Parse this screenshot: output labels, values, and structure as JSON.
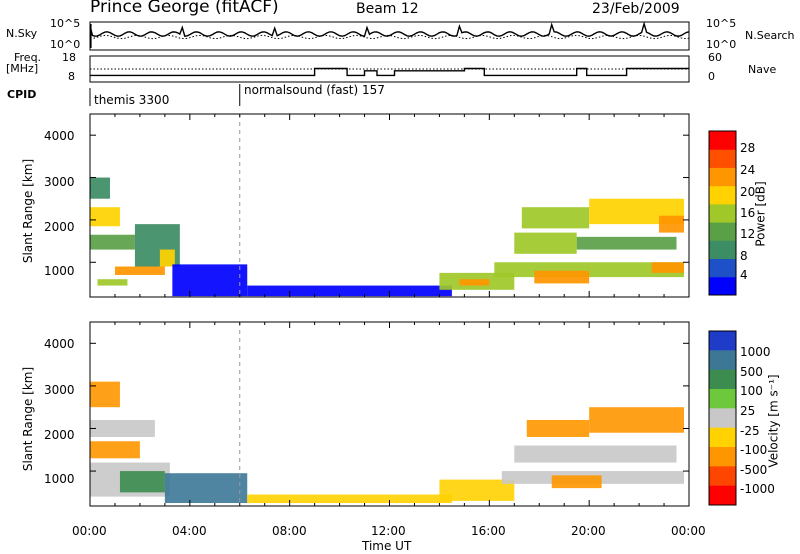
{
  "header": {
    "station": "Prince George (fitACF)",
    "beam": "Beam 12",
    "date": "23/Feb/2009"
  },
  "noise_panel": {
    "left_label": "N.Sky",
    "left_ticks": [
      "10^5",
      "10^0"
    ],
    "right_label": "N.Search",
    "right_ticks": [
      "10^5",
      "10^0"
    ]
  },
  "freq_panel": {
    "left_label_1": "Freq.",
    "left_label_2": "[MHz]",
    "left_ticks": [
      "18",
      "8"
    ],
    "right_label": "Nave",
    "right_ticks": [
      "60",
      "0"
    ]
  },
  "cpid": {
    "label": "CPID",
    "segments": [
      {
        "start_hour": 0,
        "text": "themis 3300"
      },
      {
        "start_hour": 6,
        "text": "normalsound (fast) 157"
      }
    ]
  },
  "power_panel": {
    "ylabel": "Slant Range [km]",
    "yticks": [
      "1000",
      "2000",
      "3000",
      "4000"
    ],
    "colorbar_label": "Power [dB]",
    "colorbar_ticks": [
      "4",
      "8",
      "12",
      "16",
      "20",
      "24",
      "28"
    ],
    "colors": [
      "#0000ff",
      "#1e50c8",
      "#3c8c64",
      "#5aa046",
      "#a0c828",
      "#ffd200",
      "#ff9600",
      "#ff5000",
      "#ff0000"
    ]
  },
  "velocity_panel": {
    "ylabel": "Slant Range [km]",
    "yticks": [
      "1000",
      "2000",
      "3000",
      "4000"
    ],
    "colorbar_label": "Velocity [m s⁻¹]",
    "colorbar_ticks": [
      "1000",
      "500",
      "100",
      "25",
      "-25",
      "-100",
      "-500",
      "-1000"
    ],
    "colors": [
      "#1e3cc8",
      "#3c7896",
      "#3c8c50",
      "#6ec83c",
      "#c8c8c8",
      "#ffd200",
      "#ff9600",
      "#ff4600",
      "#ff0000"
    ]
  },
  "xaxis": {
    "label": "Time UT",
    "ticks": [
      "00:00",
      "04:00",
      "08:00",
      "12:00",
      "16:00",
      "20:00",
      "00:00"
    ]
  },
  "chart_data": {
    "type": "heatmap",
    "title": "Prince George (fitACF)  Beam 12  23/Feb/2009",
    "xlabel": "Time UT",
    "ylabel": "Slant Range [km]",
    "xlim": [
      0,
      24
    ],
    "ylim": [
      180,
      4500
    ],
    "freq_mhz_steps": [
      {
        "start": 0,
        "end": 9,
        "value": 10
      },
      {
        "start": 9,
        "end": 10.3,
        "value": 13
      },
      {
        "start": 10.3,
        "end": 11,
        "value": 10
      },
      {
        "start": 11,
        "end": 11.5,
        "value": 12
      },
      {
        "start": 11.5,
        "end": 12.2,
        "value": 10
      },
      {
        "start": 12.2,
        "end": 15,
        "value": 12
      },
      {
        "start": 15,
        "end": 15.8,
        "value": 13
      },
      {
        "start": 15.8,
        "end": 19.5,
        "value": 10
      },
      {
        "start": 19.5,
        "end": 19.9,
        "value": 13
      },
      {
        "start": 19.9,
        "end": 21.5,
        "value": 10
      },
      {
        "start": 21.5,
        "end": 24,
        "value": 13
      }
    ],
    "power_regions": [
      {
        "t0": 0.0,
        "t1": 0.8,
        "r0": 2500,
        "r1": 3000,
        "db": 12
      },
      {
        "t0": 0.0,
        "t1": 1.2,
        "r0": 1850,
        "r1": 2300,
        "db": 20
      },
      {
        "t0": 0.0,
        "t1": 1.8,
        "r0": 1300,
        "r1": 1650,
        "db": 14
      },
      {
        "t0": 1.8,
        "t1": 3.6,
        "r0": 900,
        "r1": 1900,
        "db": 10
      },
      {
        "t0": 0.3,
        "t1": 1.5,
        "r0": 450,
        "r1": 600,
        "db": 18
      },
      {
        "t0": 1.0,
        "t1": 3.0,
        "r0": 700,
        "r1": 900,
        "db": 26
      },
      {
        "t0": 2.8,
        "t1": 3.4,
        "r0": 900,
        "r1": 1300,
        "db": 20
      },
      {
        "t0": 3.3,
        "t1": 6.3,
        "r0": 200,
        "r1": 950,
        "db": 4
      },
      {
        "t0": 6.3,
        "t1": 14.5,
        "r0": 200,
        "r1": 450,
        "db": 4
      },
      {
        "t0": 14.0,
        "t1": 17.0,
        "r0": 350,
        "r1": 750,
        "db": 18
      },
      {
        "t0": 14.8,
        "t1": 16.0,
        "r0": 450,
        "r1": 600,
        "db": 26
      },
      {
        "t0": 16.2,
        "t1": 23.8,
        "r0": 650,
        "r1": 1000,
        "db": 18
      },
      {
        "t0": 17.8,
        "t1": 20.0,
        "r0": 500,
        "r1": 800,
        "db": 24
      },
      {
        "t0": 17.0,
        "t1": 19.5,
        "r0": 1200,
        "r1": 1700,
        "db": 18
      },
      {
        "t0": 19.5,
        "t1": 23.5,
        "r0": 1300,
        "r1": 1600,
        "db": 14
      },
      {
        "t0": 17.3,
        "t1": 20.0,
        "r0": 1800,
        "r1": 2300,
        "db": 16
      },
      {
        "t0": 20.0,
        "t1": 23.8,
        "r0": 1900,
        "r1": 2500,
        "db": 20
      },
      {
        "t0": 22.8,
        "t1": 23.8,
        "r0": 1700,
        "r1": 2100,
        "db": 26
      },
      {
        "t0": 22.5,
        "t1": 23.8,
        "r0": 750,
        "r1": 1000,
        "db": 24
      }
    ],
    "velocity_regions": [
      {
        "t0": 0.0,
        "t1": 1.2,
        "r0": 2500,
        "r1": 3100,
        "v": -300
      },
      {
        "t0": 0.0,
        "t1": 2.6,
        "r0": 1800,
        "r1": 2200,
        "v": 0
      },
      {
        "t0": 0.0,
        "t1": 2.0,
        "r0": 1300,
        "r1": 1700,
        "v": -150
      },
      {
        "t0": 0.0,
        "t1": 3.2,
        "r0": 400,
        "r1": 1200,
        "v": 0
      },
      {
        "t0": 1.2,
        "t1": 3.0,
        "r0": 500,
        "r1": 1000,
        "v": 120
      },
      {
        "t0": 3.0,
        "t1": 6.3,
        "r0": 250,
        "r1": 950,
        "v": 600
      },
      {
        "t0": 6.3,
        "t1": 14.5,
        "r0": 250,
        "r1": 450,
        "v": -80
      },
      {
        "t0": 14.0,
        "t1": 17.0,
        "r0": 300,
        "r1": 800,
        "v": -60
      },
      {
        "t0": 16.5,
        "t1": 23.8,
        "r0": 700,
        "r1": 1000,
        "v": 0
      },
      {
        "t0": 18.5,
        "t1": 20.5,
        "r0": 600,
        "r1": 900,
        "v": -120
      },
      {
        "t0": 17.0,
        "t1": 23.5,
        "r0": 1200,
        "r1": 1600,
        "v": 0
      },
      {
        "t0": 20.0,
        "t1": 23.8,
        "r0": 1900,
        "r1": 2500,
        "v": -300
      },
      {
        "t0": 17.5,
        "t1": 20.0,
        "r0": 1800,
        "r1": 2200,
        "v": -200
      }
    ]
  }
}
